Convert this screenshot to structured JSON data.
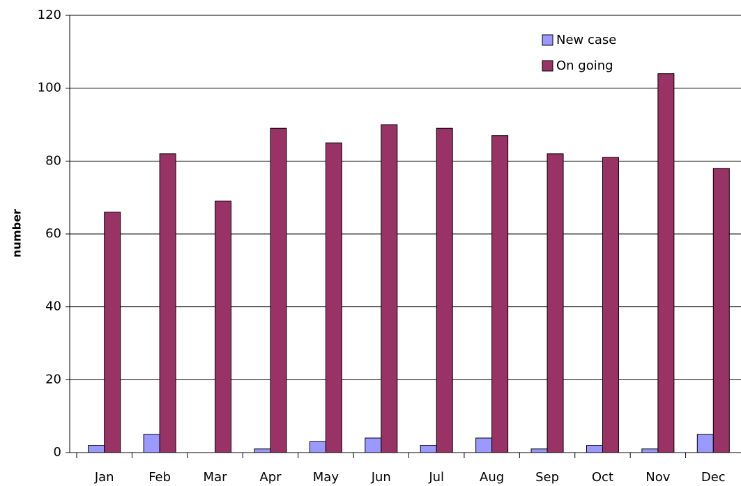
{
  "chart_data": {
    "type": "bar",
    "y_label": "number",
    "categories": [
      "Jan",
      "Feb",
      "Mar",
      "Apr",
      "May",
      "Jun",
      "Jul",
      "Aug",
      "Sep",
      "Oct",
      "Nov",
      "Dec"
    ],
    "series": [
      {
        "name": "New case",
        "color": "#9999ff",
        "values": [
          2,
          5,
          0,
          1,
          3,
          4,
          2,
          4,
          1,
          2,
          1,
          5
        ]
      },
      {
        "name": "On going",
        "color": "#993366",
        "values": [
          66,
          82,
          69,
          89,
          85,
          90,
          89,
          87,
          82,
          81,
          104,
          78
        ]
      }
    ],
    "ylim": [
      0,
      120
    ],
    "yticks": [
      0,
      20,
      40,
      60,
      80,
      100,
      120
    ],
    "grid": true,
    "legend": "top-right"
  }
}
